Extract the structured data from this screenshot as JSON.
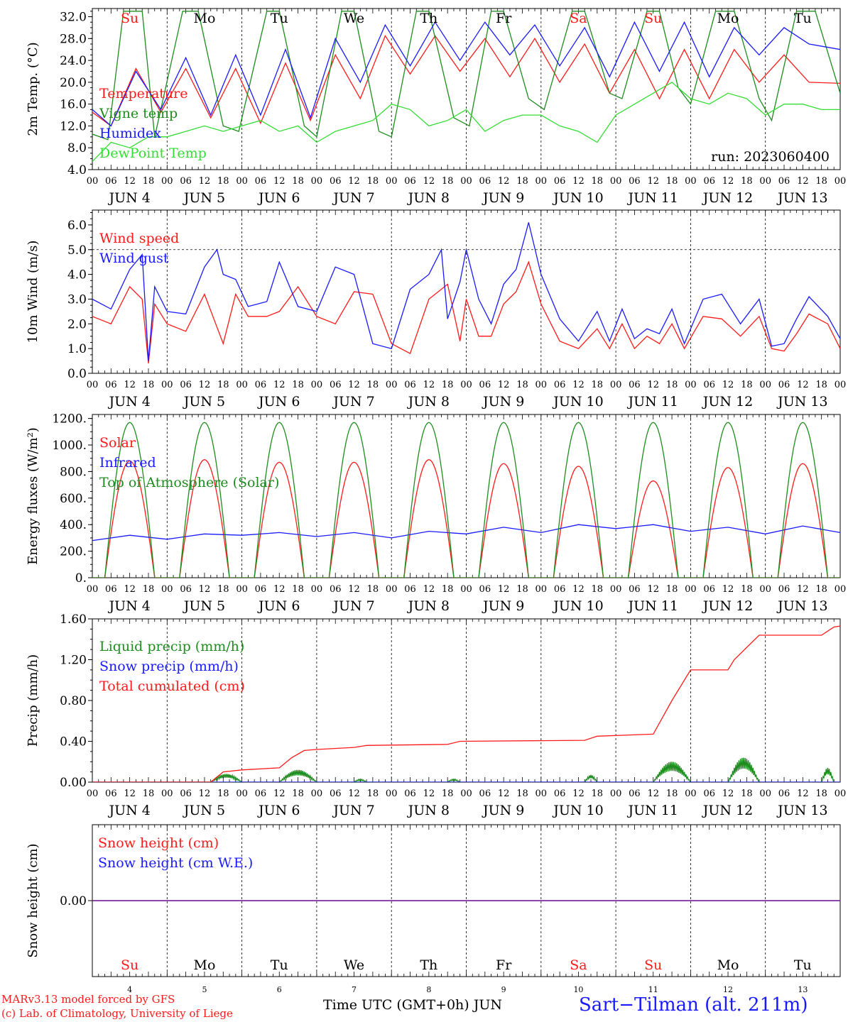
{
  "colors": {
    "red": "#ff1a1a",
    "blue": "#1a1aff",
    "green": "#1e8c1e",
    "lightgreen": "#33dd33",
    "purple": "#7a2aa0",
    "axis": "#000000"
  },
  "days": {
    "x_labels": [
      "JUN  4",
      "JUN  5",
      "JUN  6",
      "JUN  7",
      "JUN  8",
      "JUN  9",
      "JUN 10",
      "JUN 11",
      "JUN 12",
      "JUN 13"
    ],
    "names": [
      "Su",
      "Mo",
      "Tu",
      "We",
      "Th",
      "Fr",
      "Sa",
      "Su",
      "Mo",
      "Tu"
    ],
    "name_colors": [
      "red",
      "black",
      "black",
      "black",
      "black",
      "black",
      "red",
      "red",
      "black",
      "black"
    ],
    "numbers": [
      "4",
      "5",
      "6",
      "7",
      "8",
      "9",
      "10",
      "11",
      "12",
      "13"
    ],
    "hour_ticks": [
      "00",
      "06",
      "12",
      "18"
    ],
    "last_tick": "00"
  },
  "run_label": "run: 2023060400",
  "footer": {
    "model": "MARv3.13 model forced by GFS",
    "copyright": "(c) Lab. of Climatology, University of Liege",
    "xtitle": "Time UTC (GMT+0h) JUN",
    "station": "Sart−Tilman (alt. 211m)"
  },
  "chart_data": [
    {
      "type": "line",
      "ylabel": "2m Temp. (°C)",
      "ylim": [
        4,
        33.5
      ],
      "yticks": [
        "4.0",
        "8.0",
        "12.0",
        "16.0",
        "20.0",
        "24.0",
        "28.0",
        "32.0"
      ],
      "series": [
        {
          "name": "Temperature",
          "color": "red",
          "x_hours": [
            0,
            6,
            14,
            22,
            30,
            38,
            46,
            54,
            62,
            70,
            78,
            86,
            94,
            102,
            110,
            118,
            126,
            134,
            142,
            150,
            158,
            166,
            174,
            182,
            190,
            198,
            206,
            214,
            222,
            230,
            240
          ],
          "values": [
            14.5,
            12,
            22.5,
            14.5,
            22.5,
            13.5,
            22.5,
            12.5,
            23.5,
            13,
            25,
            17,
            28.5,
            21.5,
            28.5,
            22,
            28,
            21,
            28,
            20,
            27,
            18,
            26,
            17,
            26,
            17,
            26,
            20,
            25,
            20,
            19.8
          ]
        },
        {
          "name": "Vigne temp",
          "color": "green",
          "x_hours": [
            0,
            5,
            10,
            16,
            20,
            29,
            34,
            42,
            47,
            56,
            60,
            68,
            72,
            80,
            84,
            92,
            96,
            104,
            108,
            116,
            121,
            128,
            132,
            140,
            145,
            154,
            158,
            166,
            170,
            178,
            182,
            188,
            192,
            200,
            206,
            214,
            218,
            226,
            232,
            240
          ],
          "values": [
            10.5,
            9.5,
            33,
            33,
            10,
            33,
            33,
            12,
            11,
            33,
            33,
            12,
            10,
            33,
            33,
            11,
            10,
            33,
            33,
            13.5,
            12,
            33,
            33,
            17,
            15,
            33,
            33,
            18,
            17,
            33,
            33,
            19,
            16,
            33,
            33,
            17,
            13,
            33,
            33,
            18
          ]
        },
        {
          "name": "Humidex",
          "color": "blue",
          "x_hours": [
            0,
            6,
            14,
            22,
            30,
            38,
            46,
            54,
            62,
            70,
            78,
            86,
            94,
            102,
            110,
            118,
            126,
            134,
            142,
            150,
            158,
            166,
            174,
            182,
            190,
            198,
            206,
            214,
            222,
            230,
            240
          ],
          "values": [
            15,
            12,
            22,
            15,
            24.5,
            14,
            25,
            14,
            26,
            13.5,
            28,
            20,
            30.5,
            23,
            31,
            24,
            31,
            25,
            30.5,
            23,
            30,
            21,
            31,
            22,
            31,
            21,
            30,
            25,
            30,
            27,
            26
          ]
        },
        {
          "name": "DewPoint Temp",
          "color": "lightgreen",
          "x_hours": [
            0,
            6,
            12,
            18,
            24,
            30,
            36,
            42,
            48,
            54,
            60,
            66,
            72,
            78,
            84,
            90,
            96,
            102,
            108,
            114,
            120,
            126,
            132,
            138,
            144,
            150,
            156,
            162,
            168,
            174,
            180,
            186,
            192,
            198,
            204,
            210,
            216,
            222,
            228,
            234,
            240
          ],
          "values": [
            5.5,
            9,
            8,
            10,
            10,
            11,
            12,
            11,
            12,
            13,
            11,
            12,
            9,
            11,
            12,
            13,
            16,
            15,
            12,
            13,
            15,
            11,
            13,
            14,
            14,
            12,
            11,
            9,
            14,
            16,
            18,
            20,
            17,
            16,
            18,
            17,
            14,
            16,
            16,
            15,
            15
          ]
        }
      ],
      "legend": [
        "Temperature",
        "Vigne temp",
        "Humidex",
        "DewPoint Temp"
      ]
    },
    {
      "type": "line",
      "ylabel": "10m Wind (m/s)",
      "ylim": [
        0,
        6.6
      ],
      "refline": 5.0,
      "yticks": [
        "0.0",
        "1.0",
        "2.0",
        "3.0",
        "4.0",
        "5.0",
        "6.0"
      ],
      "series": [
        {
          "name": "Wind speed",
          "color": "red",
          "x_hours": [
            0,
            6,
            12,
            16,
            18,
            20,
            24,
            30,
            36,
            42,
            46,
            50,
            56,
            60,
            66,
            72,
            78,
            84,
            90,
            96,
            102,
            108,
            114,
            118,
            120,
            124,
            128,
            132,
            136,
            140,
            144,
            150,
            156,
            162,
            166,
            170,
            174,
            178,
            182,
            186,
            190,
            196,
            202,
            208,
            214,
            218,
            222,
            226,
            230,
            236,
            240
          ],
          "values": [
            2.3,
            2.0,
            3.5,
            3.0,
            0.4,
            2.8,
            2.0,
            1.7,
            3.2,
            1.2,
            3.2,
            2.3,
            2.3,
            2.5,
            3.5,
            2.3,
            2.0,
            3.3,
            3.2,
            1.2,
            0.8,
            3.0,
            3.6,
            1.3,
            3.0,
            1.5,
            1.5,
            2.8,
            3.3,
            4.5,
            2.8,
            1.3,
            1.0,
            1.8,
            1.0,
            2.0,
            1.0,
            1.5,
            1.2,
            2.0,
            1.0,
            2.3,
            2.2,
            1.5,
            2.3,
            1.0,
            0.9,
            1.6,
            2.4,
            2.0,
            1.0
          ]
        },
        {
          "name": "Wind gust",
          "color": "blue",
          "x_hours": [
            0,
            6,
            12,
            16,
            18,
            20,
            24,
            30,
            36,
            40,
            42,
            46,
            50,
            56,
            60,
            66,
            72,
            78,
            84,
            90,
            96,
            102,
            108,
            112,
            114,
            118,
            120,
            124,
            128,
            132,
            136,
            140,
            144,
            150,
            156,
            162,
            166,
            170,
            174,
            178,
            182,
            186,
            190,
            196,
            202,
            208,
            214,
            218,
            222,
            226,
            230,
            236,
            240
          ],
          "values": [
            3.0,
            2.6,
            4.2,
            4.8,
            0.5,
            3.5,
            2.5,
            2.4,
            4.3,
            5.0,
            4.0,
            3.8,
            2.7,
            2.9,
            4.5,
            2.7,
            2.5,
            4.3,
            4.0,
            1.2,
            1.0,
            3.4,
            4.0,
            5.0,
            2.2,
            3.7,
            5.0,
            3.0,
            2.0,
            3.6,
            4.2,
            6.1,
            4.0,
            2.2,
            1.3,
            2.5,
            1.3,
            2.6,
            1.4,
            1.8,
            1.6,
            2.6,
            1.2,
            3.0,
            3.2,
            2.0,
            3.0,
            1.1,
            1.2,
            2.2,
            3.1,
            2.3,
            1.4
          ]
        }
      ],
      "legend": [
        "Wind speed",
        "Wind gust"
      ]
    },
    {
      "type": "line",
      "ylabel": "Energy fluxes (W/m²)",
      "ylim": [
        0,
        1230
      ],
      "yticks": [
        "0.",
        "200.",
        "400.",
        "600.",
        "800.",
        "1000.",
        "1200."
      ],
      "series": [
        {
          "name": "Solar",
          "color": "red",
          "peaks": [
            880,
            890,
            870,
            870,
            890,
            860,
            840,
            730,
            830,
            860
          ]
        },
        {
          "name": "Infrared",
          "color": "blue",
          "x_hours": [
            0,
            12,
            24,
            36,
            48,
            60,
            72,
            84,
            96,
            108,
            120,
            132,
            144,
            156,
            168,
            180,
            192,
            204,
            216,
            228,
            240
          ],
          "values": [
            280,
            320,
            290,
            330,
            320,
            340,
            310,
            340,
            300,
            350,
            330,
            380,
            340,
            400,
            370,
            400,
            350,
            380,
            330,
            390,
            340
          ]
        },
        {
          "name": "Top of Atmosphere (Solar)",
          "color": "green",
          "peaks": [
            1170,
            1170,
            1170,
            1170,
            1170,
            1170,
            1170,
            1170,
            1170,
            1170
          ]
        }
      ],
      "daylight_hours": [
        4,
        20
      ],
      "legend": [
        "Solar",
        "Infrared",
        "Top of Atmosphere (Solar)"
      ]
    },
    {
      "type": "line",
      "ylabel": "Precip (mm/h)",
      "ylim": [
        0,
        1.6
      ],
      "yticks": [
        "0.00",
        "0.40",
        "0.80",
        "1.20",
        "1.60"
      ],
      "series": [
        {
          "name": "Liquid precip (mm/h)",
          "color": "green",
          "bursts": [
            [
              38,
              48,
              0.08
            ],
            [
              60,
              72,
              0.12
            ],
            [
              84,
              88,
              0.03
            ],
            [
              114,
              118,
              0.03
            ],
            [
              158,
              162,
              0.07
            ],
            [
              180,
              192,
              0.2
            ],
            [
              204,
              214,
              0.24
            ],
            [
              234,
              238,
              0.14
            ]
          ]
        },
        {
          "name": "Snow precip (mm/h)",
          "color": "blue",
          "x_hours": [
            0,
            240
          ],
          "values": [
            0,
            0
          ]
        },
        {
          "name": "Total cumulated (cm)",
          "color": "red",
          "x_hours": [
            0,
            38,
            42,
            48,
            60,
            64,
            68,
            72,
            84,
            88,
            114,
            118,
            158,
            162,
            180,
            186,
            192,
            204,
            206,
            214,
            234,
            238,
            240
          ],
          "values": [
            0,
            0,
            0.1,
            0.12,
            0.14,
            0.24,
            0.31,
            0.32,
            0.34,
            0.36,
            0.37,
            0.4,
            0.41,
            0.45,
            0.47,
            0.8,
            1.1,
            1.1,
            1.2,
            1.44,
            1.44,
            1.52,
            1.53
          ]
        }
      ],
      "legend": [
        "Liquid precip (mm/h)",
        "Snow precip (mm/h)",
        "Total cumulated (cm)"
      ]
    },
    {
      "type": "line",
      "ylabel": "Snow height (cm)",
      "ylim": [
        -1,
        1
      ],
      "yticks": [
        "0.00"
      ],
      "series": [
        {
          "name": "Snow height (cm)",
          "color": "red",
          "x_hours": [
            0,
            240
          ],
          "values": [
            0,
            0
          ]
        },
        {
          "name": "Snow height (cm W.E.)",
          "color": "blue",
          "x_hours": [
            0,
            240
          ],
          "values": [
            0,
            0
          ]
        }
      ],
      "legend": [
        "Snow height (cm)",
        "Snow height (cm W.E.)"
      ]
    }
  ]
}
